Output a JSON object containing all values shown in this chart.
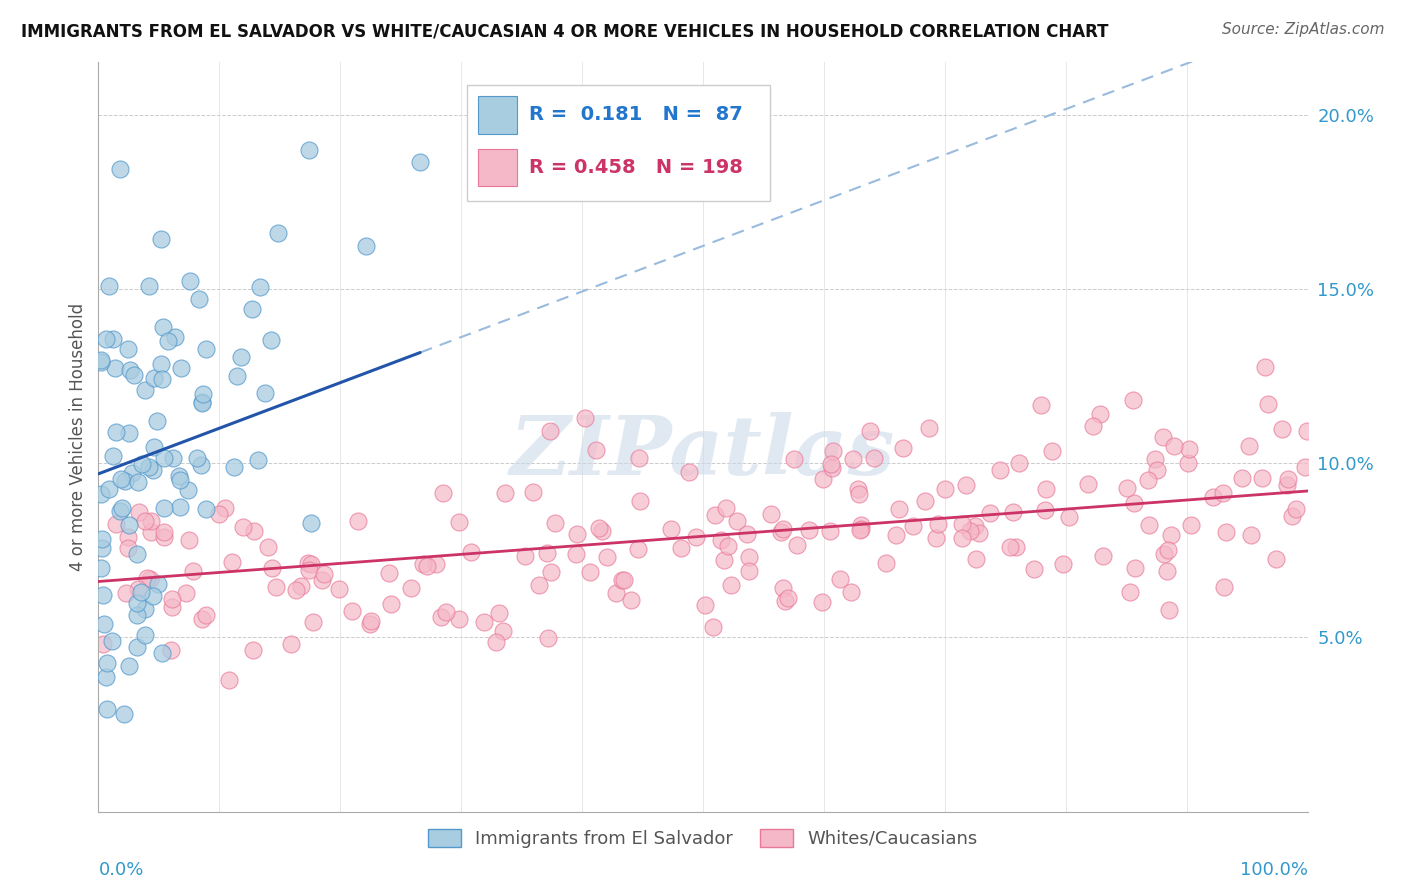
{
  "title": "IMMIGRANTS FROM EL SALVADOR VS WHITE/CAUCASIAN 4 OR MORE VEHICLES IN HOUSEHOLD CORRELATION CHART",
  "source": "Source: ZipAtlas.com",
  "ylabel": "4 or more Vehicles in Household",
  "ytick_labels": [
    "",
    "5.0%",
    "10.0%",
    "15.0%",
    "20.0%"
  ],
  "ytick_vals": [
    0.0,
    0.05,
    0.1,
    0.15,
    0.2
  ],
  "blue_fill": "#a8cce0",
  "blue_edge": "#5599cc",
  "pink_fill": "#f5b8c8",
  "pink_edge": "#e87898",
  "blue_line_color": "#2255aa",
  "pink_line_color": "#cc3366",
  "dashed_line_color": "#99bbdd",
  "watermark_color": "#d0dff0",
  "title_fontsize": 12,
  "source_fontsize": 11,
  "tick_fontsize": 13,
  "ylabel_fontsize": 12
}
